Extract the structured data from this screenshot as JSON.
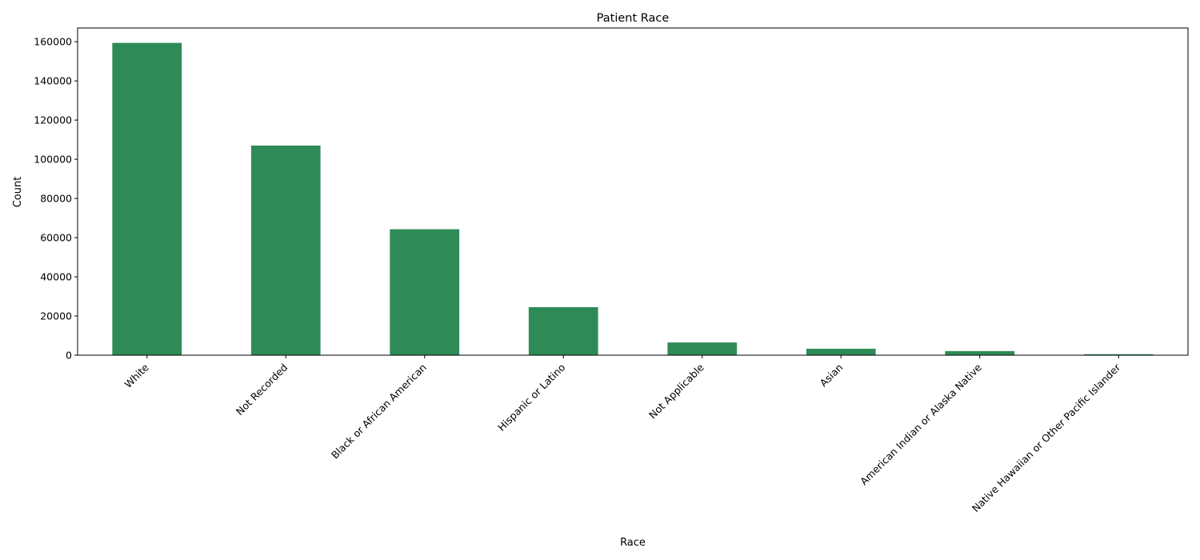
{
  "chart_data": {
    "type": "bar",
    "title": "Patient Race",
    "xlabel": "Race",
    "ylabel": "Count",
    "categories": [
      "White",
      "Not Recorded",
      "Black or African American",
      "Hispanic or Latino",
      "Not Applicable",
      "Asian",
      "American Indian or Alaska Native",
      "Native Hawaiian or Other Pacific Islander"
    ],
    "values": [
      159400,
      107000,
      64300,
      24500,
      6500,
      3300,
      2100,
      500
    ],
    "ylim": [
      0,
      167000
    ],
    "yticks": [
      0,
      20000,
      40000,
      60000,
      80000,
      100000,
      120000,
      140000,
      160000
    ],
    "bar_color": "#2e8b57",
    "grid": false,
    "legend": "none"
  }
}
